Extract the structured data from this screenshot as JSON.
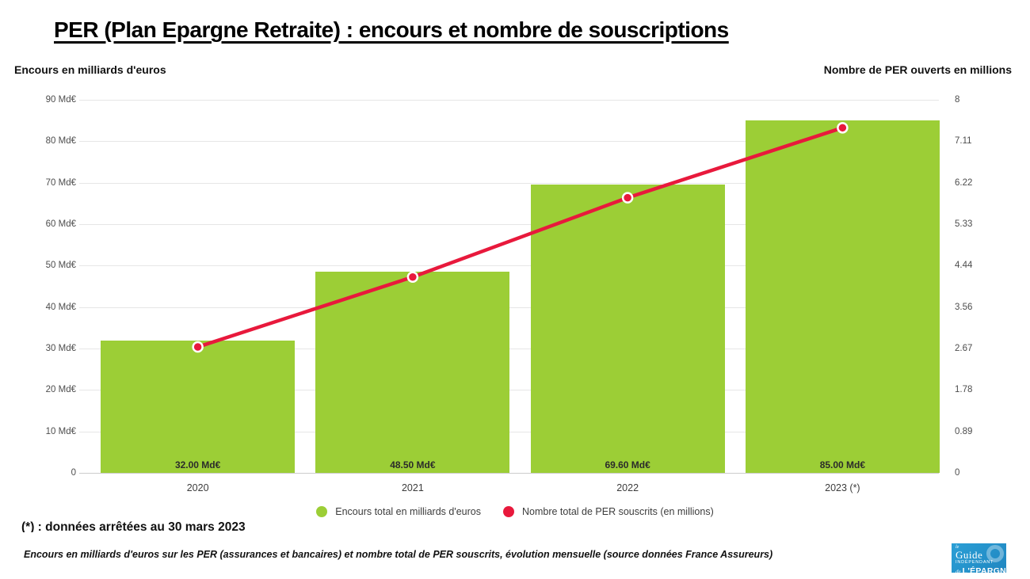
{
  "title": "PER (Plan Epargne Retraite) : encours et nombre de souscriptions",
  "left_axis_title": "Encours en milliards d'euros",
  "right_axis_title": "Nombre de PER ouverts en millions",
  "legend": {
    "encours_label": "Encours total en milliards d'euros",
    "souscrits_label": "Nombre total de PER souscrits (en millions)"
  },
  "footnote": "(*) : données arrêtées au 30 mars 2023",
  "caption": "Encours en milliards d'euros sur les PER (assurances et bancaires) et nombre total de PER souscrits, évolution mensuelle (source données France Assureurs)",
  "logo": {
    "le": "le",
    "guide": "Guide",
    "independant": "INDÉPENDANT",
    "de": "de",
    "epargne": "L'ÉPARGNE"
  },
  "colors": {
    "bar": "#9CCE36",
    "line": "#E8193C",
    "grid": "#e6e6e6",
    "zero_line": "#cccccc",
    "tick_text": "#4d4d4d",
    "logo_blue": "#2b9fd6"
  },
  "chart_data": {
    "type": "bar",
    "combo": "bar+line",
    "categories": [
      "2020",
      "2021",
      "2022",
      "2023 (*)"
    ],
    "series": [
      {
        "name": "Encours total en milliards d'euros",
        "type": "bar",
        "axis": "left",
        "values": [
          32.0,
          48.5,
          69.6,
          85.0
        ],
        "labels": [
          "32.00 Md€",
          "48.50 Md€",
          "69.60 Md€",
          "85.00 Md€"
        ],
        "color": "#9CCE36"
      },
      {
        "name": "Nombre total de PER souscrits (en millions)",
        "type": "line",
        "axis": "right",
        "values": [
          2.7,
          4.2,
          5.9,
          7.4
        ],
        "color": "#E8193C"
      }
    ],
    "left_axis": {
      "title": "Encours en milliards d'euros",
      "min": 0,
      "max": 90,
      "ticks": [
        "0",
        "10 Md€",
        "20 Md€",
        "30 Md€",
        "40 Md€",
        "50 Md€",
        "60 Md€",
        "70 Md€",
        "80 Md€",
        "90 Md€"
      ]
    },
    "right_axis": {
      "title": "Nombre de PER ouverts en millions",
      "min": 0,
      "max": 8,
      "ticks": [
        "0",
        "0.89",
        "1.78",
        "2.67",
        "3.56",
        "4.44",
        "5.33",
        "6.22",
        "7.11",
        "8"
      ]
    },
    "grid": true,
    "legend_position": "bottom"
  }
}
